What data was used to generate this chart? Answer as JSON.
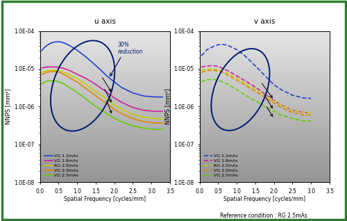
{
  "title_left": "u axis",
  "title_right": "v axis",
  "ylabel": "NNPS [mm²]",
  "xlabel": "Spatial Frequency [cycles/mm]",
  "reference_note": "Reference condition : RG 2.5mAs",
  "ylim_log": [
    -8,
    -4
  ],
  "xlim": [
    0.0,
    3.5
  ],
  "border_color": "#2e7d32",
  "reduction_label": "30%\nreduction",
  "legend_entries": [
    {
      "label": "VG 1.2mAs",
      "color": "#2244cc",
      "linestyle": "solid"
    },
    {
      "label": "VG 1.6mAs",
      "color": "#cc2299",
      "linestyle": "solid"
    },
    {
      "label": "RG 2.5mAs",
      "color": "#cccc00",
      "linestyle": "solid"
    },
    {
      "label": "VG 2.0mAs",
      "color": "#dd8800",
      "linestyle": "solid"
    },
    {
      "label": "VG 2.5mAs",
      "color": "#66cc00",
      "linestyle": "solid"
    }
  ],
  "u_curves": {
    "VG_1.2mAs": {
      "x": [
        0.05,
        0.1,
        0.2,
        0.3,
        0.4,
        0.5,
        0.6,
        0.7,
        0.8,
        0.9,
        1.0,
        1.2,
        1.4,
        1.6,
        1.8,
        2.0,
        2.2,
        2.5,
        2.8,
        3.1,
        3.3
      ],
      "y": [
        3e-05,
        3.5e-05,
        4.2e-05,
        4.8e-05,
        5.1e-05,
        5.2e-05,
        5e-05,
        4.6e-05,
        4.1e-05,
        3.6e-05,
        3.1e-05,
        2.2e-05,
        1.5e-05,
        1e-05,
        6.5e-06,
        4.5e-06,
        3.2e-06,
        2.3e-06,
        1.9e-06,
        1.8e-06,
        1.8e-06
      ],
      "color": "#2244cc",
      "linestyle": "solid",
      "linewidth": 1.2
    },
    "VG_1.6mAs": {
      "x": [
        0.05,
        0.2,
        0.4,
        0.5,
        0.6,
        0.7,
        0.8,
        1.0,
        1.2,
        1.4,
        1.6,
        1.8,
        2.0,
        2.2,
        2.5,
        2.8,
        3.1,
        3.3
      ],
      "y": [
        1.05e-05,
        1.12e-05,
        1.12e-05,
        1.1e-05,
        1.05e-05,
        9.8e-06,
        9e-06,
        7.2e-06,
        5.8e-06,
        4.5e-06,
        3.3e-06,
        2.4e-06,
        1.7e-06,
        1.3e-06,
        9.5e-07,
        8e-07,
        7.5e-07,
        7.5e-07
      ],
      "color": "#cc2299",
      "linestyle": "solid",
      "linewidth": 1.2
    },
    "RG_2.5mAs": {
      "x": [
        0.05,
        0.2,
        0.4,
        0.5,
        0.6,
        0.8,
        1.0,
        1.2,
        1.4,
        1.6,
        1.8,
        2.0,
        2.2,
        2.5,
        2.8,
        3.1,
        3.3
      ],
      "y": [
        8e-06,
        9e-06,
        9.2e-06,
        9e-06,
        8.5e-06,
        7e-06,
        5.5e-06,
        4.2e-06,
        3e-06,
        2.2e-06,
        1.6e-06,
        1.1e-06,
        8.5e-07,
        6.2e-07,
        5.2e-07,
        4.8e-07,
        4.8e-07
      ],
      "color": "#cccc00",
      "linestyle": "solid",
      "linewidth": 1.2
    },
    "VG_2.0mAs": {
      "x": [
        0.05,
        0.2,
        0.4,
        0.5,
        0.6,
        0.8,
        1.0,
        1.2,
        1.4,
        1.6,
        1.8,
        2.0,
        2.2,
        2.5,
        2.8,
        3.1,
        3.3
      ],
      "y": [
        7e-06,
        8.2e-06,
        8.5e-06,
        8.2e-06,
        7.5e-06,
        5.8e-06,
        4.5e-06,
        3.2e-06,
        2.3e-06,
        1.65e-06,
        1.2e-06,
        8.5e-07,
        6.5e-07,
        4.8e-07,
        4e-07,
        3.7e-07,
        3.7e-07
      ],
      "color": "#dd8800",
      "linestyle": "solid",
      "linewidth": 1.2
    },
    "VG_2.5mAs": {
      "x": [
        0.05,
        0.2,
        0.4,
        0.5,
        0.6,
        0.8,
        1.0,
        1.2,
        1.4,
        1.6,
        1.8,
        2.0,
        2.2,
        2.5,
        2.8,
        3.1,
        3.3
      ],
      "y": [
        4e-06,
        4.8e-06,
        4.8e-06,
        4.6e-06,
        4.2e-06,
        3.2e-06,
        2.4e-06,
        1.7e-06,
        1.2e-06,
        8.8e-07,
        6.5e-07,
        5e-07,
        4e-07,
        3.1e-07,
        2.7e-07,
        2.5e-07,
        2.5e-07
      ],
      "color": "#66cc00",
      "linestyle": "solid",
      "linewidth": 1.2
    }
  },
  "v_curves": {
    "VG_1.2mAs": {
      "x": [
        0.05,
        0.2,
        0.4,
        0.5,
        0.6,
        0.7,
        0.8,
        1.0,
        1.2,
        1.4,
        1.6,
        1.8,
        2.0,
        2.2,
        2.5,
        2.8,
        3.0
      ],
      "y": [
        2.2e-05,
        3.2e-05,
        4e-05,
        4.3e-05,
        4.4e-05,
        4.3e-05,
        4e-05,
        3.2e-05,
        2.3e-05,
        1.5e-05,
        9.5e-06,
        6e-06,
        3.8e-06,
        2.8e-06,
        2e-06,
        1.7e-06,
        1.65e-06
      ],
      "color": "#2244cc",
      "linestyle": "dashed",
      "linewidth": 1.2
    },
    "VG_1.6mAs": {
      "x": [
        0.05,
        0.2,
        0.4,
        0.5,
        0.6,
        0.8,
        1.0,
        1.2,
        1.4,
        1.6,
        1.8,
        2.0,
        2.2,
        2.5,
        2.8,
        3.0
      ],
      "y": [
        1.1e-05,
        1.2e-05,
        1.2e-05,
        1.15e-05,
        1.05e-05,
        8.5e-06,
        6.5e-06,
        5e-06,
        3.8e-06,
        2.8e-06,
        2e-06,
        1.45e-06,
        1.1e-06,
        8e-07,
        7e-07,
        7e-07
      ],
      "color": "#cc2299",
      "linestyle": "dashed",
      "linewidth": 1.2
    },
    "RG_2.5mAs": {
      "x": [
        0.05,
        0.2,
        0.4,
        0.5,
        0.6,
        0.8,
        1.0,
        1.2,
        1.4,
        1.6,
        1.8,
        2.0,
        2.2,
        2.5,
        2.8,
        3.0
      ],
      "y": [
        9e-06,
        9.8e-06,
        9.8e-06,
        9.5e-06,
        9e-06,
        7.2e-06,
        5.6e-06,
        4.3e-06,
        3.3e-06,
        2.5e-06,
        1.9e-06,
        1.4e-06,
        1.1e-06,
        8e-07,
        7e-07,
        7e-07
      ],
      "color": "#cccc00",
      "linestyle": "dashed",
      "linewidth": 1.2
    },
    "VG_2.0mAs": {
      "x": [
        0.05,
        0.2,
        0.4,
        0.5,
        0.6,
        0.8,
        1.0,
        1.2,
        1.4,
        1.6,
        1.8,
        2.0,
        2.2,
        2.5,
        2.8,
        3.0
      ],
      "y": [
        8e-06,
        9e-06,
        9e-06,
        8.8e-06,
        8.2e-06,
        6.5e-06,
        5e-06,
        3.8e-06,
        2.9e-06,
        2.2e-06,
        1.65e-06,
        1.25e-06,
        9.5e-07,
        7e-07,
        6e-07,
        6e-07
      ],
      "color": "#dd8800",
      "linestyle": "dashed",
      "linewidth": 1.2
    },
    "VG_2.5mAs": {
      "x": [
        0.05,
        0.2,
        0.4,
        0.5,
        0.6,
        0.8,
        1.0,
        1.2,
        1.4,
        1.6,
        1.8,
        2.0,
        2.2,
        2.5,
        2.8,
        3.0
      ],
      "y": [
        4.5e-06,
        5.2e-06,
        5.2e-06,
        5e-06,
        4.6e-06,
        3.7e-06,
        2.8e-06,
        2.1e-06,
        1.6e-06,
        1.25e-06,
        9.5e-07,
        7.5e-07,
        6e-07,
        4.8e-07,
        4.2e-07,
        4.2e-07
      ],
      "color": "#66cc00",
      "linestyle": "dashed",
      "linewidth": 1.2
    }
  }
}
